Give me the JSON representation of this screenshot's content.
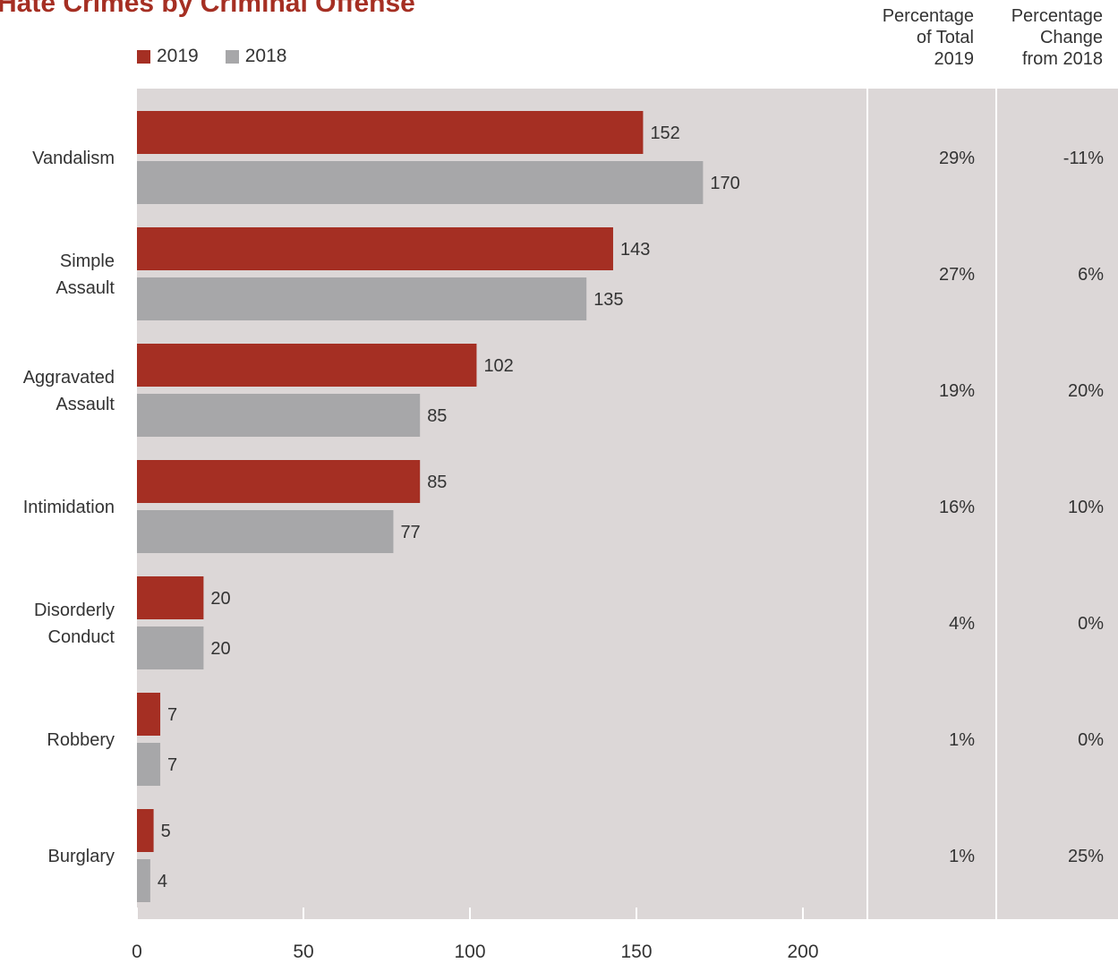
{
  "chart_data": {
    "type": "bar",
    "orientation": "horizontal",
    "title": "Hate Crimes by Criminal Offense",
    "categories": [
      [
        "Vandalism"
      ],
      [
        "Simple",
        "Assault"
      ],
      [
        "Aggravated",
        "Assault"
      ],
      [
        "Intimidation"
      ],
      [
        "Disorderly",
        "Conduct"
      ],
      [
        "Robbery"
      ],
      [
        "Burglary"
      ]
    ],
    "series": [
      {
        "name": "2019",
        "color": "#a52f23",
        "values": [
          152,
          143,
          102,
          85,
          20,
          7,
          5
        ]
      },
      {
        "name": "2018",
        "color": "#a7a7a9",
        "values": [
          170,
          135,
          85,
          77,
          20,
          7,
          4
        ]
      }
    ],
    "xlim": [
      0,
      220
    ],
    "xticks": [
      0,
      50,
      100,
      150,
      200
    ],
    "xlabel": "",
    "ylabel": "",
    "legend_position": "top-left",
    "grid": false,
    "plot_background": "#dcd7d7",
    "table_columns": [
      {
        "header": [
          "Percentage",
          "of Total",
          "2019"
        ],
        "values": [
          "29%",
          "27%",
          "19%",
          "16%",
          "4%",
          "1%",
          "1%"
        ]
      },
      {
        "header": [
          "Percentage",
          "Change",
          "from 2018"
        ],
        "values": [
          "-11%",
          "6%",
          "20%",
          "10%",
          "0%",
          "0%",
          "25%"
        ]
      }
    ]
  }
}
